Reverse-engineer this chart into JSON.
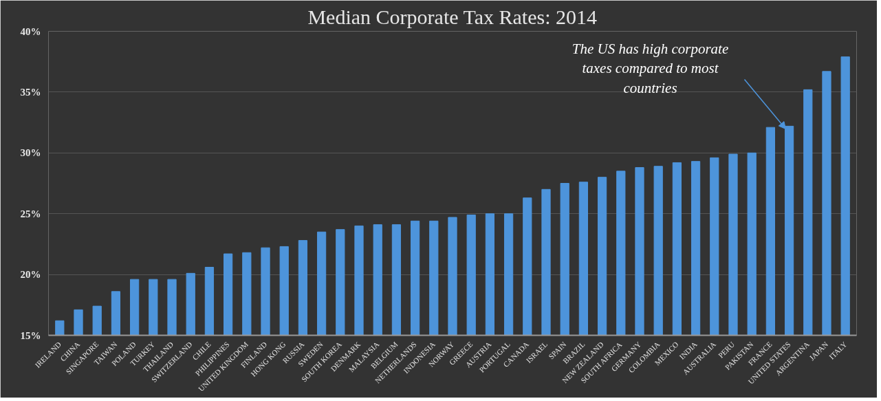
{
  "chart_data": {
    "type": "bar",
    "title": "Median Corporate Tax Rates: 2014",
    "categories": [
      "IRELAND",
      "CHINA",
      "SINGAPORE",
      "TAIWAN",
      "POLAND",
      "TURKEY",
      "THAILAND",
      "SWITZERLAND",
      "CHILE",
      "PHILIPPINES",
      "UNITED KINGDOM",
      "FINLAND",
      "HONG KONG",
      "RUSSIA",
      "SWEDEN",
      "SOUTH KOREA",
      "DENMARK",
      "MALAYSIA",
      "BELGIUM",
      "NETHERLANDS",
      "INDONESIA",
      "NORWAY",
      "GREECE",
      "AUSTRIA",
      "PORTUGAL",
      "CANADA",
      "ISRAEL",
      "SPAIN",
      "BRAZIL",
      "NEW ZEALAND",
      "SOUTH AFRICA",
      "GERMANY",
      "COLOMBIA",
      "MEXICO",
      "INDIA",
      "AUSTRALIA",
      "PERU",
      "PAKISTAN",
      "FRANCE",
      "UNITED STATES",
      "ARGENTINA",
      "JAPAN",
      "ITALY"
    ],
    "values": [
      16.2,
      17.1,
      17.4,
      18.6,
      19.6,
      19.6,
      19.6,
      20.1,
      20.6,
      21.7,
      21.8,
      22.2,
      22.3,
      22.8,
      23.5,
      23.7,
      24.0,
      24.1,
      24.1,
      24.4,
      24.4,
      24.7,
      24.9,
      25.0,
      25.0,
      26.3,
      27.0,
      27.5,
      27.6,
      28.0,
      28.5,
      28.8,
      28.9,
      29.2,
      29.3,
      29.6,
      29.9,
      30.0,
      32.1,
      32.2,
      35.2,
      36.7,
      37.9
    ],
    "color": "#4d94db",
    "ylim": [
      15,
      40
    ],
    "yticks": [
      {
        "value": 15,
        "label": "15%"
      },
      {
        "value": 20,
        "label": "20%"
      },
      {
        "value": 25,
        "label": "25%"
      },
      {
        "value": 30,
        "label": "30%"
      },
      {
        "value": 35,
        "label": "35%"
      },
      {
        "value": 40,
        "label": "40%"
      }
    ],
    "grid": "y",
    "annotations": [
      "The US has high corporate taxes compared to most countries"
    ]
  }
}
